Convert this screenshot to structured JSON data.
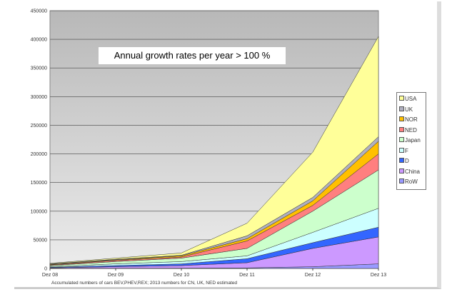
{
  "chart_data": {
    "type": "area",
    "stacked": true,
    "title": "Annual growth rates per year > 100 %",
    "footnote": "Accumulated numbers of cars BEV,PHEV,REX; 2013 numbers for CN, UK, NED estimated",
    "categories": [
      "Dez 08",
      "Dez 09",
      "Dez 10",
      "Dez 11",
      "Dez 12",
      "Dez 13"
    ],
    "ylim": [
      0,
      450000
    ],
    "yticks": [
      0,
      50000,
      100000,
      150000,
      200000,
      250000,
      300000,
      350000,
      400000,
      450000
    ],
    "grid": true,
    "legend_position": "right",
    "series": [
      {
        "name": "RoW",
        "color": "#9999ff",
        "values": [
          200,
          300,
          500,
          1000,
          3000,
          8000
        ]
      },
      {
        "name": "China",
        "color": "#cc99ff",
        "values": [
          800,
          2700,
          4500,
          9000,
          32000,
          47000
        ]
      },
      {
        "name": "D",
        "color": "#3366ff",
        "values": [
          1000,
          2000,
          3000,
          7000,
          10000,
          17000
        ]
      },
      {
        "name": "F",
        "color": "#ccffff",
        "values": [
          1000,
          3000,
          4000,
          5000,
          18000,
          33000
        ]
      },
      {
        "name": "Japan",
        "color": "#ccffcc",
        "values": [
          2000,
          4000,
          6000,
          13000,
          37000,
          67000
        ]
      },
      {
        "name": "NED",
        "color": "#ff7f7f",
        "values": [
          1000,
          2000,
          2000,
          13000,
          10000,
          28000
        ]
      },
      {
        "name": "NOR",
        "color": "#ffc000",
        "values": [
          1000,
          1000,
          2000,
          4000,
          8000,
          22000
        ]
      },
      {
        "name": "UK",
        "color": "#b0b0c0",
        "values": [
          1000,
          1000,
          1000,
          5000,
          6000,
          8000
        ]
      },
      {
        "name": "USA",
        "color": "#ffff99",
        "values": [
          1000,
          2000,
          4000,
          22000,
          79000,
          175000
        ]
      }
    ],
    "legend_order": [
      "USA",
      "UK",
      "NOR",
      "NED",
      "Japan",
      "F",
      "D",
      "China",
      "RoW"
    ]
  }
}
